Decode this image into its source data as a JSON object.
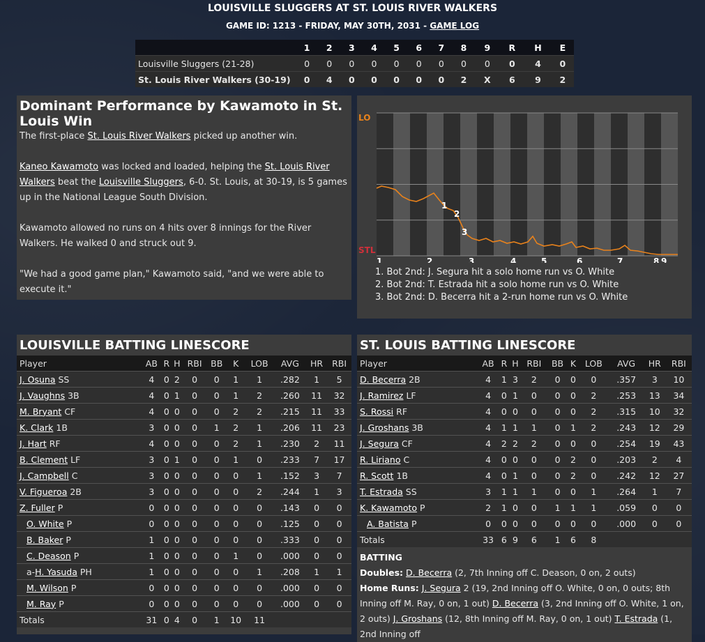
{
  "header": {
    "title": "LOUISVILLE SLUGGERS AT ST. LOUIS RIVER WALKERS",
    "subtitle": "GAME ID: 1213 - FRIDAY, MAY 30TH, 2031 - ",
    "game_log_link": "GAME LOG"
  },
  "linescore": {
    "columns": [
      "",
      "1",
      "2",
      "3",
      "4",
      "5",
      "6",
      "7",
      "8",
      "9",
      "R",
      "H",
      "E"
    ],
    "rows": [
      {
        "team": "Louisville Sluggers (21-28)",
        "innings": [
          "0",
          "0",
          "0",
          "0",
          "0",
          "0",
          "0",
          "0",
          "0"
        ],
        "r": "0",
        "h": "4",
        "e": "0"
      },
      {
        "team": "St. Louis River Walkers (30-19)",
        "innings": [
          "0",
          "4",
          "0",
          "0",
          "0",
          "0",
          "0",
          "2",
          "X"
        ],
        "r": "6",
        "h": "9",
        "e": "2"
      }
    ]
  },
  "recap": {
    "headline": "Dominant Performance by Kawamoto in St. Louis Win",
    "p1_pre": "The first-place ",
    "p1_link": "St. Louis River Walkers",
    "p1_post": " picked up another win.",
    "p2_link1": "Kaneo Kawamoto",
    "p2_mid1": " was locked and loaded, helping the ",
    "p2_link2": "St. Louis River Walkers",
    "p2_mid2": " beat the ",
    "p2_link3": "Louisville Sluggers",
    "p2_post": ", 6-0. St. Louis, at 30-19, is 5 games up in the National League South Division.",
    "p3": "Kawamoto allowed no runs on 4 hits over 8 innings for the River Walkers. He walked 0 and struck out 9.",
    "p4": "\"We had a good game plan,\" Kawamoto said, \"and we were able to execute it.\""
  },
  "win_probability": {
    "top_label": "LO",
    "bottom_label": "STL",
    "innings": [
      "1",
      "2",
      "3",
      "4",
      "5",
      "6",
      "7",
      "8",
      "9"
    ],
    "markers": [
      "1",
      "2",
      "3"
    ],
    "notes": [
      "1. Bot 2nd: J. Segura hit a solo home run vs O. White",
      "2. Bot 2nd: T. Estrada hit a solo home run vs O. White",
      "3. Bot 2nd: D. Becerra hit a 2-run home run vs O. White"
    ],
    "colors": {
      "line": "#e8821c",
      "lo": "#e8821c",
      "stl": "#d0303a"
    }
  },
  "louisville": {
    "title": "LOUISVILLE BATTING LINESCORE",
    "columns": [
      "Player",
      "AB",
      "R",
      "H",
      "RBI",
      "BB",
      "K",
      "LOB",
      "AVG",
      "HR",
      "RBI"
    ],
    "rows": [
      {
        "name": "J. Osuna",
        "pos": "SS",
        "sub": false,
        "stats": [
          "4",
          "0",
          "2",
          "0",
          "0",
          "1",
          "1",
          ".282",
          "1",
          "5"
        ]
      },
      {
        "name": "J. Vaughns",
        "pos": "3B",
        "sub": false,
        "stats": [
          "4",
          "0",
          "1",
          "0",
          "0",
          "1",
          "2",
          ".260",
          "11",
          "32"
        ]
      },
      {
        "name": "M. Bryant",
        "pos": "CF",
        "sub": false,
        "stats": [
          "4",
          "0",
          "0",
          "0",
          "0",
          "2",
          "2",
          ".215",
          "11",
          "33"
        ]
      },
      {
        "name": "K. Clark",
        "pos": "1B",
        "sub": false,
        "stats": [
          "3",
          "0",
          "0",
          "0",
          "1",
          "2",
          "1",
          ".206",
          "11",
          "23"
        ]
      },
      {
        "name": "J. Hart",
        "pos": "RF",
        "sub": false,
        "stats": [
          "4",
          "0",
          "0",
          "0",
          "0",
          "2",
          "1",
          ".230",
          "2",
          "11"
        ]
      },
      {
        "name": "B. Clement",
        "pos": "LF",
        "sub": false,
        "stats": [
          "3",
          "0",
          "1",
          "0",
          "0",
          "1",
          "0",
          ".233",
          "7",
          "17"
        ]
      },
      {
        "name": "J. Campbell",
        "pos": "C",
        "sub": false,
        "stats": [
          "3",
          "0",
          "0",
          "0",
          "0",
          "0",
          "1",
          ".152",
          "3",
          "7"
        ]
      },
      {
        "name": "V. Figueroa",
        "pos": "2B",
        "sub": false,
        "stats": [
          "3",
          "0",
          "0",
          "0",
          "0",
          "0",
          "2",
          ".244",
          "1",
          "3"
        ]
      },
      {
        "name": "Z. Fuller",
        "pos": "P",
        "sub": false,
        "stats": [
          "0",
          "0",
          "0",
          "0",
          "0",
          "0",
          "0",
          ".143",
          "0",
          "0"
        ]
      },
      {
        "name": "O. White",
        "pos": "P",
        "sub": true,
        "stats": [
          "0",
          "0",
          "0",
          "0",
          "0",
          "0",
          "0",
          ".125",
          "0",
          "0"
        ]
      },
      {
        "name": "B. Baker",
        "pos": "P",
        "sub": true,
        "stats": [
          "1",
          "0",
          "0",
          "0",
          "0",
          "0",
          "0",
          ".333",
          "0",
          "0"
        ]
      },
      {
        "name": "C. Deason",
        "pos": "P",
        "sub": true,
        "stats": [
          "1",
          "0",
          "0",
          "0",
          "0",
          "1",
          "0",
          ".000",
          "0",
          "0"
        ]
      },
      {
        "name": "H. Yasuda",
        "prefix": "a-",
        "pos": "PH",
        "sub": true,
        "stats": [
          "1",
          "0",
          "0",
          "0",
          "0",
          "0",
          "1",
          ".208",
          "1",
          "1"
        ]
      },
      {
        "name": "M. Wilson",
        "pos": "P",
        "sub": true,
        "stats": [
          "0",
          "0",
          "0",
          "0",
          "0",
          "0",
          "0",
          ".000",
          "0",
          "0"
        ]
      },
      {
        "name": "M. Ray",
        "pos": "P",
        "sub": true,
        "stats": [
          "0",
          "0",
          "0",
          "0",
          "0",
          "0",
          "0",
          ".000",
          "0",
          "0"
        ]
      }
    ],
    "totals": {
      "label": "Totals",
      "stats": [
        "31",
        "0",
        "4",
        "0",
        "1",
        "10",
        "11",
        "",
        "",
        ""
      ]
    }
  },
  "stlouis": {
    "title": "ST. LOUIS BATTING LINESCORE",
    "columns": [
      "Player",
      "AB",
      "R",
      "H",
      "RBI",
      "BB",
      "K",
      "LOB",
      "AVG",
      "HR",
      "RBI"
    ],
    "rows": [
      {
        "name": "D. Becerra",
        "pos": "2B",
        "sub": false,
        "stats": [
          "4",
          "1",
          "3",
          "2",
          "0",
          "0",
          "0",
          ".357",
          "3",
          "10"
        ]
      },
      {
        "name": "J. Ramirez",
        "pos": "LF",
        "sub": false,
        "stats": [
          "4",
          "0",
          "1",
          "0",
          "0",
          "0",
          "2",
          ".253",
          "13",
          "34"
        ]
      },
      {
        "name": "S. Rossi",
        "pos": "RF",
        "sub": false,
        "stats": [
          "4",
          "0",
          "0",
          "0",
          "0",
          "0",
          "2",
          ".315",
          "10",
          "32"
        ]
      },
      {
        "name": "J. Groshans",
        "pos": "3B",
        "sub": false,
        "stats": [
          "4",
          "1",
          "1",
          "1",
          "0",
          "1",
          "2",
          ".243",
          "12",
          "29"
        ]
      },
      {
        "name": "J. Segura",
        "pos": "CF",
        "sub": false,
        "stats": [
          "4",
          "2",
          "2",
          "2",
          "0",
          "0",
          "0",
          ".254",
          "19",
          "43"
        ]
      },
      {
        "name": "R. Liriano",
        "pos": "C",
        "sub": false,
        "stats": [
          "4",
          "0",
          "0",
          "0",
          "0",
          "2",
          "0",
          ".203",
          "2",
          "4"
        ]
      },
      {
        "name": "R. Scott",
        "pos": "1B",
        "sub": false,
        "stats": [
          "4",
          "0",
          "1",
          "0",
          "0",
          "2",
          "0",
          ".242",
          "12",
          "27"
        ]
      },
      {
        "name": "T. Estrada",
        "pos": "SS",
        "sub": false,
        "stats": [
          "3",
          "1",
          "1",
          "1",
          "0",
          "0",
          "1",
          ".264",
          "1",
          "7"
        ]
      },
      {
        "name": "K. Kawamoto",
        "pos": "P",
        "sub": false,
        "stats": [
          "2",
          "1",
          "0",
          "0",
          "1",
          "1",
          "1",
          ".059",
          "0",
          "0"
        ]
      },
      {
        "name": "A. Batista",
        "pos": "P",
        "sub": true,
        "stats": [
          "0",
          "0",
          "0",
          "0",
          "0",
          "0",
          "0",
          ".000",
          "0",
          "0"
        ]
      }
    ],
    "totals": {
      "label": "Totals",
      "stats": [
        "33",
        "6",
        "9",
        "6",
        "1",
        "6",
        "8",
        "",
        "",
        ""
      ]
    },
    "notes": {
      "batting_label": "BATTING",
      "doubles_label": "Doubles:",
      "doubles_link": "D. Becerra",
      "doubles_text": " (2, 7th Inning off C. Deason, 0 on, 2 outs)",
      "hr_label": "Home Runs:",
      "hr_link1": "J. Segura",
      "hr_text1": " 2 (19, 2nd Inning off O. White, 0 on, 0 outs; 8th Inning off M. Ray, 0 on, 1 out) ",
      "hr_link2": "D. Becerra",
      "hr_text2": " (3, 2nd Inning off O. White, 1 on, 2 outs) ",
      "hr_link3": "J. Groshans",
      "hr_text3": " (12, 8th Inning off M. Ray, 0 on, 1 out) ",
      "hr_link4": "T. Estrada",
      "hr_text4": " (1, 2nd Inning off"
    }
  }
}
